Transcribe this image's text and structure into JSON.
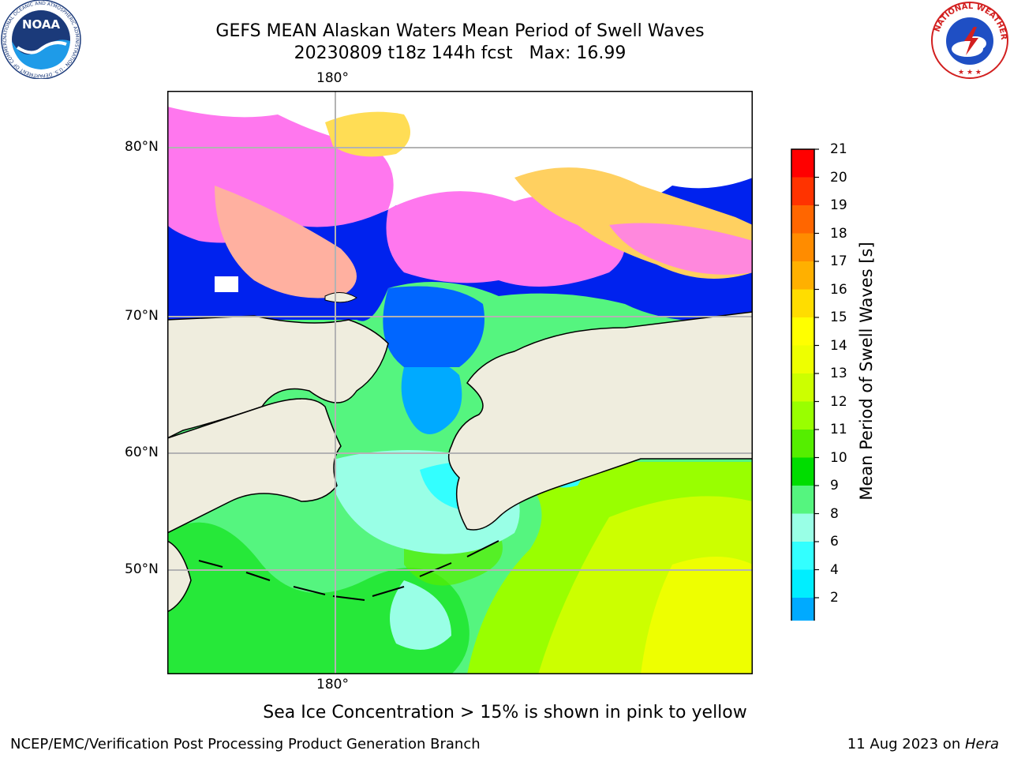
{
  "title": {
    "line1": "GEFS MEAN Alaskan Waters Mean Period of Swell Waves",
    "line2": "20230809 t18z 144h fcst   Max: 16.99"
  },
  "map": {
    "lon_label_top": "180°",
    "lon_label_bottom": "180°",
    "lat_labels": [
      "80°N",
      "70°N",
      "60°N",
      "50°N"
    ],
    "land_color": "#efedde",
    "grid_color": "#b3b3b3"
  },
  "colorbar": {
    "label": "Mean Period of Swell Waves [s]",
    "ticks": [
      "21",
      "20",
      "19",
      "18",
      "17",
      "16",
      "15",
      "14",
      "13",
      "12",
      "11",
      "10",
      "9",
      "8",
      "6",
      "4",
      "2"
    ],
    "colors_top_to_bottom": [
      "#ff0000",
      "#ff3300",
      "#ff6600",
      "#ff8c00",
      "#ffb000",
      "#ffdd00",
      "#ffff00",
      "#eeff00",
      "#ccff00",
      "#99ff00",
      "#55ee00",
      "#00dd00",
      "#55f57f",
      "#99ffe6",
      "#33ffff",
      "#00eeff",
      "#00aaff",
      "#0066ff"
    ],
    "extend_color": "#0022ee"
  },
  "note": "Sea Ice Concentration > 15% is shown in pink to yellow",
  "footer": {
    "left": "NCEP/EMC/Verification Post Processing Product Generation Branch",
    "right_date": "11 Aug 2023 on ",
    "right_host": "Hera"
  },
  "logos": {
    "noaa_text": "NOAA",
    "noaa_ring": "NATIONAL OCEANIC AND ATMOSPHERIC ADMINISTRATION · U.S. DEPARTMENT OF COMMERCE",
    "nws_ring": "NATIONAL WEATHER SERVICE"
  }
}
